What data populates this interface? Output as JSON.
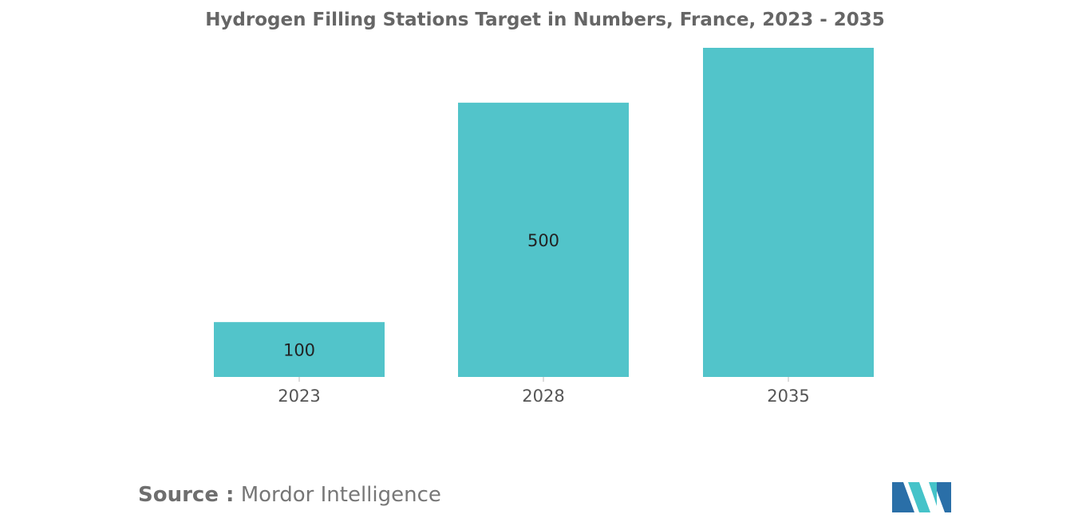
{
  "chart_data": {
    "type": "bar",
    "title": "Hydrogen Filling Stations Target in Numbers, France, 2023 - 2035",
    "categories": [
      "2023",
      "2028",
      "2035"
    ],
    "values": [
      100,
      500,
      600
    ],
    "data_labels": [
      "100",
      "500",
      ""
    ],
    "xlabel": "",
    "ylabel": "",
    "ylim": [
      0,
      600
    ],
    "grid": false,
    "legend": "none",
    "bar_color": "#52c4ca"
  },
  "source": {
    "label": "Source :",
    "text": "Mordor Intelligence"
  },
  "logo": {
    "colors": [
      "#2a6fa8",
      "#45c3c9"
    ]
  }
}
